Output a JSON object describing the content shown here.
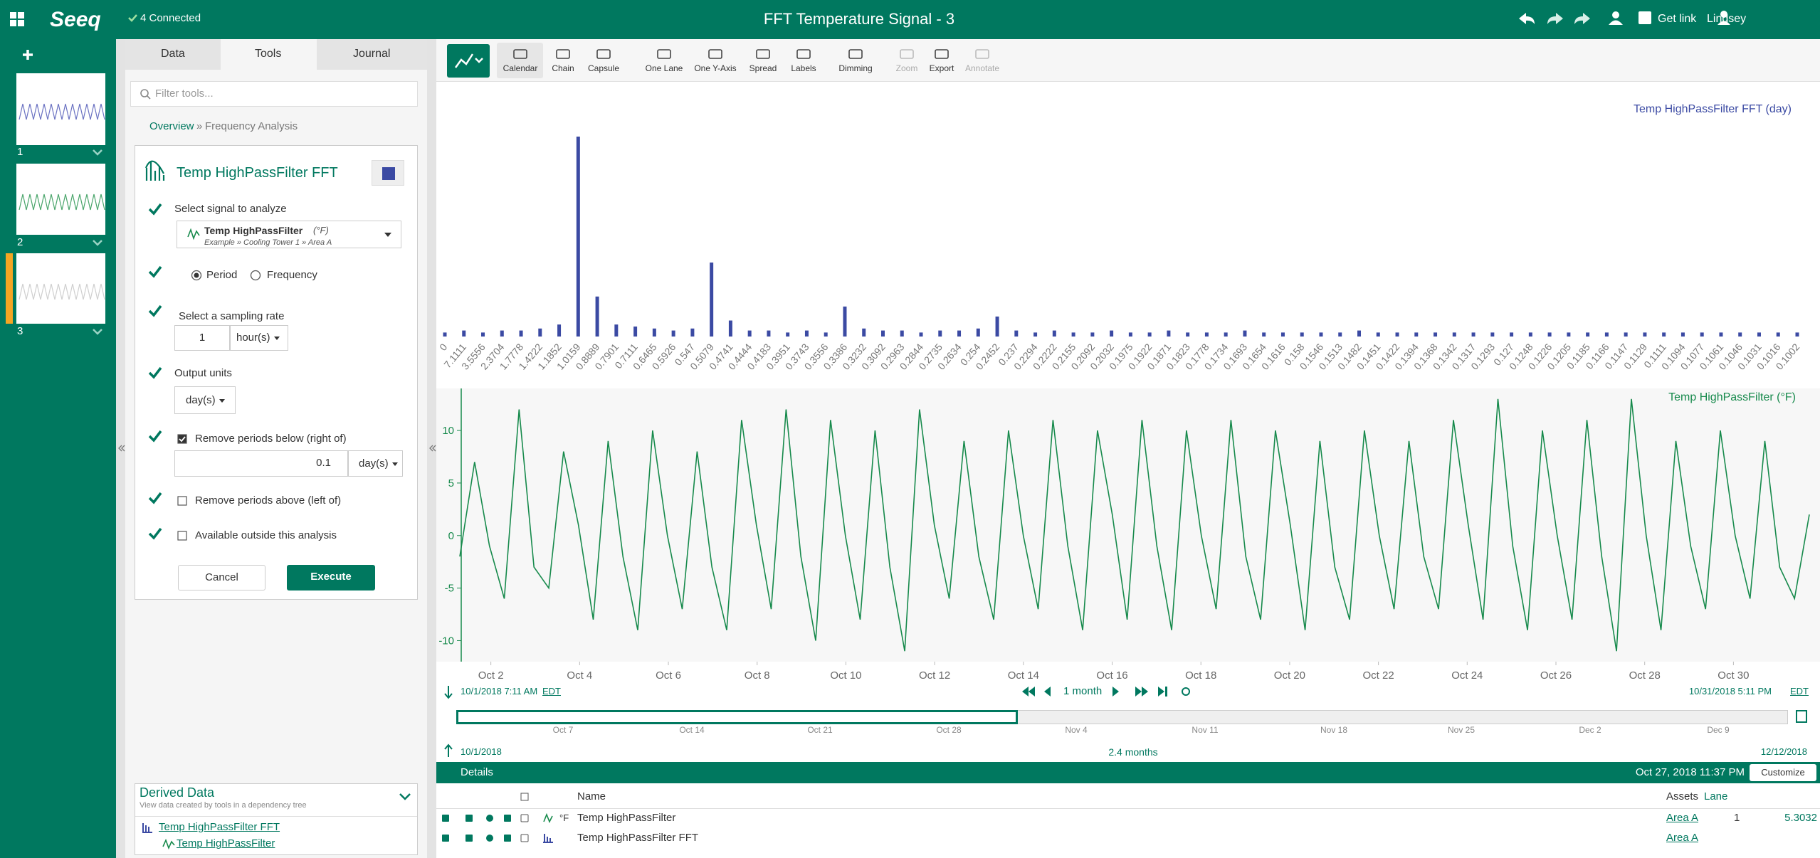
{
  "header": {
    "app_name": "Seeq",
    "connection": "4 Connected",
    "title": "FFT Temperature Signal - 3",
    "get_link": "Get link",
    "user": "Lindsey"
  },
  "worksheets": [
    1,
    2,
    3
  ],
  "tools_panel": {
    "tabs": [
      "Data",
      "Tools",
      "Journal"
    ],
    "filter_placeholder": "Filter tools...",
    "breadcrumb": {
      "home": "Overview",
      "separator": "»",
      "current": "Frequency Analysis"
    },
    "form": {
      "title": "Temp HighPassFilter FFT",
      "signal_label": "Select signal to analyze",
      "signal_name": "Temp HighPassFilter",
      "signal_unit": "(°F)",
      "signal_path": "Example » Cooling Tower 1 » Area A",
      "mode_options": [
        "Period",
        "Frequency"
      ],
      "sampling_label": "Select a sampling rate",
      "sampling_value": 1,
      "sampling_unit": "hour(s)",
      "output_label": "Output units",
      "output_unit": "day(s)",
      "remove_below_label": "Remove periods below (right of)",
      "remove_below_value": 0.1,
      "remove_below_unit": "day(s)",
      "remove_above_label": "Remove periods above (left of)",
      "available_label": "Available outside this analysis",
      "cancel": "Cancel",
      "execute": "Execute"
    },
    "derived_data": {
      "title": "Derived Data",
      "subtitle": "View data created by tools in a dependency tree",
      "items": [
        "Temp HighPassFilter FFT",
        "Temp HighPassFilter"
      ]
    }
  },
  "toolbar": [
    "Calendar",
    "Chain",
    "Capsule",
    "One Lane",
    "One Y-Axis",
    "Spread",
    "Labels",
    "Dimming",
    "Zoom",
    "Export",
    "Annotate"
  ],
  "chart_data": [
    {
      "type": "bar",
      "title": "Temp HighPassFilter FFT (day)",
      "color": "#3b4aa3",
      "ylim": [
        0,
        100
      ],
      "categories": [
        "0",
        "7.1111",
        "3.5556",
        "2.3704",
        "1.7778",
        "1.4222",
        "1.1852",
        "1.0159",
        "0.8889",
        "0.7901",
        "0.7111",
        "0.6465",
        "0.5926",
        "0.547",
        "0.5079",
        "0.4741",
        "0.4444",
        "0.4183",
        "0.3951",
        "0.3743",
        "0.3556",
        "0.3386",
        "0.3232",
        "0.3092",
        "0.2963",
        "0.2844",
        "0.2735",
        "0.2634",
        "0.254",
        "0.2452",
        "0.237",
        "0.2294",
        "0.2222",
        "0.2155",
        "0.2092",
        "0.2032",
        "0.1975",
        "0.1922",
        "0.1871",
        "0.1823",
        "0.1778",
        "0.1734",
        "0.1693",
        "0.1654",
        "0.1616",
        "0.158",
        "0.1546",
        "0.1513",
        "0.1482",
        "0.1451",
        "0.1422",
        "0.1394",
        "0.1368",
        "0.1342",
        "0.1317",
        "0.1293",
        "0.127",
        "0.1248",
        "0.1226",
        "0.1205",
        "0.1185",
        "0.1166",
        "0.1147",
        "0.1129",
        "0.1111",
        "0.1094",
        "0.1077",
        "0.1061",
        "0.1046",
        "0.1031",
        "0.1016",
        "0.1002"
      ],
      "values": [
        2,
        3,
        2,
        3,
        3,
        4,
        6,
        100,
        20,
        6,
        5,
        4,
        3,
        4,
        37,
        8,
        3,
        3,
        2,
        3,
        2,
        15,
        4,
        3,
        3,
        2,
        3,
        3,
        4,
        10,
        3,
        2,
        3,
        2,
        2,
        3,
        2,
        2,
        3,
        2,
        2,
        2,
        3,
        2,
        2,
        2,
        2,
        2,
        3,
        2,
        2,
        2,
        2,
        2,
        2,
        2,
        2,
        2,
        2,
        2,
        2,
        2,
        2,
        2,
        2,
        2,
        2,
        2,
        2,
        2,
        2,
        2
      ]
    },
    {
      "type": "line",
      "title": "Temp HighPassFilter (°F)",
      "color": "#178a4c",
      "xlim": [
        1.3,
        31.71
      ],
      "ylim": [
        -12,
        14
      ],
      "yticks": [
        -10,
        -5,
        0,
        5,
        10
      ],
      "xticks": [
        {
          "value": 2,
          "label": "Oct 2"
        },
        {
          "value": 4,
          "label": "Oct 4"
        },
        {
          "value": 6,
          "label": "Oct 6"
        },
        {
          "value": 8,
          "label": "Oct 8"
        },
        {
          "value": 10,
          "label": "Oct 10"
        },
        {
          "value": 12,
          "label": "Oct 12"
        },
        {
          "value": 14,
          "label": "Oct 14"
        },
        {
          "value": 16,
          "label": "Oct 16"
        },
        {
          "value": 18,
          "label": "Oct 18"
        },
        {
          "value": 20,
          "label": "Oct 20"
        },
        {
          "value": 22,
          "label": "Oct 22"
        },
        {
          "value": 24,
          "label": "Oct 24"
        },
        {
          "value": 26,
          "label": "Oct 26"
        },
        {
          "value": 28,
          "label": "Oct 28"
        },
        {
          "value": 30,
          "label": "Oct 30"
        }
      ],
      "values": [
        -2,
        7,
        -1,
        -6,
        12,
        -3,
        -5,
        8,
        1,
        -8,
        9,
        -2,
        -9,
        10,
        0,
        -7,
        8,
        -3,
        -9,
        11,
        1,
        -7,
        12,
        -2,
        -10,
        11,
        0,
        -8,
        10,
        -3,
        -11,
        12,
        1,
        -6,
        9,
        -2,
        -8,
        10,
        0,
        -7,
        11,
        -1,
        -9,
        10,
        2,
        -8,
        11,
        -1,
        -9,
        10,
        0,
        -7,
        11,
        -2,
        -8,
        10,
        1,
        -9,
        9,
        -3,
        -8,
        10,
        0,
        -7,
        9,
        -2,
        -7,
        11,
        1,
        -8,
        13,
        -1,
        -9,
        10,
        0,
        -8,
        11,
        -2,
        -11,
        13,
        0,
        -9,
        9,
        -1,
        -7,
        10,
        0,
        -6,
        9,
        -3,
        -6,
        2
      ]
    }
  ],
  "time_range": {
    "start_date": "10/1/2018 7:11 AM",
    "timezone": "EDT",
    "step": "1 month",
    "end_date": "10/31/2018 5:11 PM"
  },
  "overview": {
    "labels": [
      "Oct 7",
      "Oct 14",
      "Oct 21",
      "Oct 28",
      "Nov 4",
      "Nov 11",
      "Nov 18",
      "Nov 25",
      "Dec 2",
      "Dec 9"
    ],
    "start": "10/1/2018",
    "span": "2.4 months",
    "end": "12/12/2018"
  },
  "details": {
    "title": "Details",
    "cursor_time": "Oct 27, 2018 11:37 PM",
    "customize": "Customize",
    "columns": {
      "name": "Name",
      "assets": "Assets",
      "lane": "Lane"
    },
    "rows": [
      {
        "unit": "°F",
        "name": "Temp HighPassFilter",
        "asset": "Area A",
        "lane": 1,
        "value": 5.3032
      },
      {
        "name": "Temp HighPassFilter FFT",
        "asset": "Area A"
      }
    ]
  }
}
